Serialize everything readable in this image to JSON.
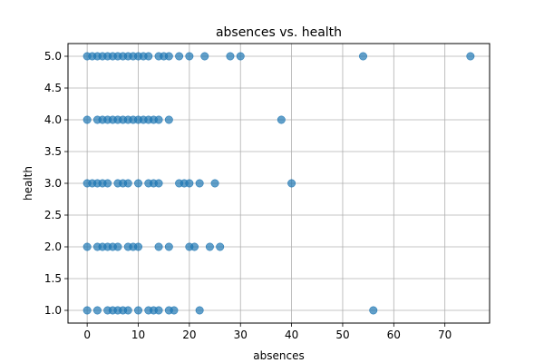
{
  "chart_data": {
    "type": "scatter",
    "title": "absences vs. health",
    "xlabel": "absences",
    "ylabel": "health",
    "xlim": [
      -3.75,
      78.75
    ],
    "ylim": [
      0.8,
      5.2
    ],
    "x_ticks": [
      0,
      10,
      20,
      30,
      40,
      50,
      60,
      70
    ],
    "y_ticks": [
      1.0,
      1.5,
      2.0,
      2.5,
      3.0,
      3.5,
      4.0,
      4.5,
      5.0
    ],
    "grid": true,
    "legend": "none",
    "marker_color": "#1f77b4",
    "marker_alpha": 0.7,
    "series": [
      {
        "points": [
          [
            0,
            5
          ],
          [
            1,
            5
          ],
          [
            2,
            5
          ],
          [
            3,
            5
          ],
          [
            4,
            5
          ],
          [
            5,
            5
          ],
          [
            6,
            5
          ],
          [
            7,
            5
          ],
          [
            8,
            5
          ],
          [
            9,
            5
          ],
          [
            10,
            5
          ],
          [
            11,
            5
          ],
          [
            12,
            5
          ],
          [
            14,
            5
          ],
          [
            15,
            5
          ],
          [
            16,
            5
          ],
          [
            18,
            5
          ],
          [
            20,
            5
          ],
          [
            23,
            5
          ],
          [
            28,
            5
          ],
          [
            30,
            5
          ],
          [
            54,
            5
          ],
          [
            75,
            5
          ],
          [
            0,
            4
          ],
          [
            2,
            4
          ],
          [
            3,
            4
          ],
          [
            4,
            4
          ],
          [
            5,
            4
          ],
          [
            6,
            4
          ],
          [
            7,
            4
          ],
          [
            8,
            4
          ],
          [
            9,
            4
          ],
          [
            10,
            4
          ],
          [
            11,
            4
          ],
          [
            12,
            4
          ],
          [
            13,
            4
          ],
          [
            14,
            4
          ],
          [
            16,
            4
          ],
          [
            38,
            4
          ],
          [
            0,
            3
          ],
          [
            1,
            3
          ],
          [
            2,
            3
          ],
          [
            3,
            3
          ],
          [
            4,
            3
          ],
          [
            6,
            3
          ],
          [
            7,
            3
          ],
          [
            8,
            3
          ],
          [
            10,
            3
          ],
          [
            12,
            3
          ],
          [
            13,
            3
          ],
          [
            14,
            3
          ],
          [
            18,
            3
          ],
          [
            19,
            3
          ],
          [
            20,
            3
          ],
          [
            22,
            3
          ],
          [
            25,
            3
          ],
          [
            40,
            3
          ],
          [
            0,
            2
          ],
          [
            2,
            2
          ],
          [
            3,
            2
          ],
          [
            4,
            2
          ],
          [
            5,
            2
          ],
          [
            6,
            2
          ],
          [
            8,
            2
          ],
          [
            9,
            2
          ],
          [
            10,
            2
          ],
          [
            14,
            2
          ],
          [
            16,
            2
          ],
          [
            20,
            2
          ],
          [
            21,
            2
          ],
          [
            24,
            2
          ],
          [
            26,
            2
          ],
          [
            0,
            1
          ],
          [
            2,
            1
          ],
          [
            4,
            1
          ],
          [
            5,
            1
          ],
          [
            6,
            1
          ],
          [
            7,
            1
          ],
          [
            8,
            1
          ],
          [
            10,
            1
          ],
          [
            12,
            1
          ],
          [
            13,
            1
          ],
          [
            14,
            1
          ],
          [
            16,
            1
          ],
          [
            17,
            1
          ],
          [
            22,
            1
          ],
          [
            56,
            1
          ]
        ]
      }
    ]
  }
}
